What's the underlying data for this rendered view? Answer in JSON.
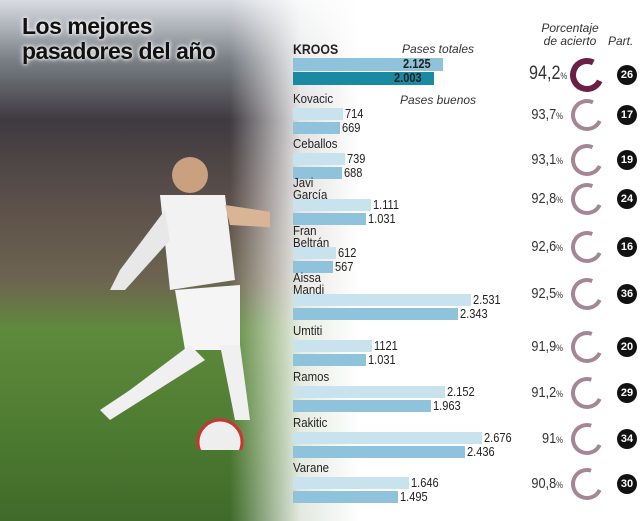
{
  "title_line1": "Los mejores",
  "title_line2": "pasadores del año",
  "headers": {
    "totales": "Pases totales",
    "buenos": "Pases buenos",
    "porcentaje1": "Porcentaje",
    "porcentaje2": "de acierto",
    "partidos": "Part."
  },
  "colors": {
    "bar_total": "#c9e3ee",
    "bar_good": "#8ec3db",
    "kroos_total": "#8ec3db",
    "kroos_good": "#1a8aa3",
    "ring_highlight": "#6a1f45",
    "ring": "#a48694"
  },
  "chart_data": {
    "type": "bar",
    "categories": [
      "KROOS",
      "Kovacic",
      "Ceballos",
      "Javi García",
      "Fran Beltrán",
      "Aissa Mandi",
      "Umtiti",
      "Ramos",
      "Rakitic",
      "Varane"
    ],
    "series": [
      {
        "name": "Pases totales",
        "values": [
          2125,
          714,
          739,
          1111,
          612,
          2531,
          1121,
          2152,
          2676,
          1646
        ],
        "labels": [
          "2.125",
          "714",
          "739",
          "1.111",
          "612",
          "2.531",
          "1121",
          "2.152",
          "2.676",
          "1.646"
        ]
      },
      {
        "name": "Pases buenos",
        "values": [
          2003,
          669,
          688,
          1031,
          567,
          2343,
          1031,
          1963,
          2436,
          1495
        ],
        "labels": [
          "2.003",
          "669",
          "688",
          "1.031",
          "567",
          "2.343",
          "1.031",
          "1.963",
          "2.436",
          "1.495"
        ]
      }
    ],
    "accuracy": [
      "94,2",
      "93,7",
      "93,1",
      "92,8",
      "92,6",
      "92,5",
      "91,9",
      "91,2",
      "91",
      "90,8"
    ],
    "accuracy_values": [
      94.2,
      93.7,
      93.1,
      92.8,
      92.6,
      92.5,
      91.9,
      91.2,
      91,
      90.8
    ],
    "pct_sign": "%",
    "matches": [
      "26",
      "17",
      "19",
      "24",
      "16",
      "36",
      "20",
      "29",
      "34",
      "30"
    ]
  }
}
